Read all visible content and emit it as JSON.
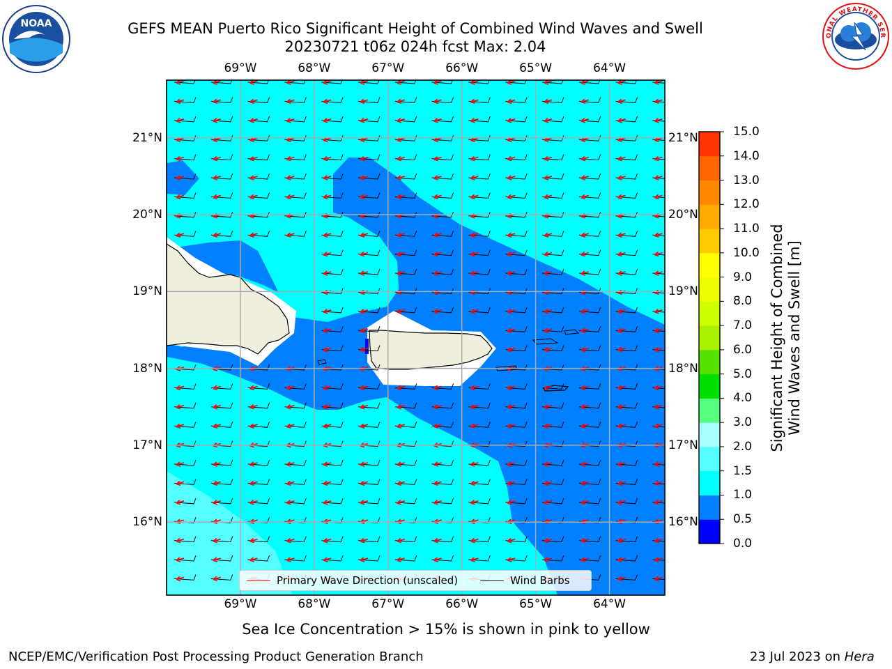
{
  "header": {
    "title_line1": "GEFS MEAN Puerto Rico Significant Height of Combined Wind Waves and Swell",
    "title_line2": "20230721 t06z 024h fcst   Max: 2.04"
  },
  "logos": {
    "left": {
      "name": "noaa-logo",
      "text": "NOAA",
      "ring_text": "NATIONAL OCEANIC AND ATMOSPHERIC ADMINISTRATION · U.S. DEPARTMENT OF COMMERCE"
    },
    "right": {
      "name": "nws-logo",
      "ring_text": "NATIONAL WEATHER SERVICE"
    }
  },
  "map": {
    "lon_range": [
      -70,
      -63.25
    ],
    "lat_range": [
      15.05,
      21.75
    ],
    "lon_ticks": [
      {
        "value": -69,
        "label": "69°W"
      },
      {
        "value": -68,
        "label": "68°W"
      },
      {
        "value": -67,
        "label": "67°W"
      },
      {
        "value": -66,
        "label": "66°W"
      },
      {
        "value": -65,
        "label": "65°W"
      },
      {
        "value": -64,
        "label": "64°W"
      }
    ],
    "lat_ticks": [
      {
        "value": 21,
        "label": "21°N"
      },
      {
        "value": 20,
        "label": "20°N"
      },
      {
        "value": 19,
        "label": "19°N"
      },
      {
        "value": 18,
        "label": "18°N"
      },
      {
        "value": 17,
        "label": "17°N"
      },
      {
        "value": 16,
        "label": "16°N"
      }
    ],
    "gridlines": true,
    "colors": {
      "land": "#f0eedc",
      "band_0_5_1_0": "#0080ff",
      "band_1_0_1_5": "#00ffff",
      "band_1_5_2_0": "#55ffff",
      "wave_arrow": "#ff0000",
      "wind_barb": "#000000"
    },
    "wave_direction": "from east-northeast",
    "wind": "easterly barbs"
  },
  "legend": {
    "items": [
      {
        "name": "primary-wave-direction",
        "label": "Primary Wave Direction (unscaled)",
        "color": "#ff0000"
      },
      {
        "name": "wind-barbs",
        "label": "Wind Barbs",
        "color": "#000000"
      }
    ],
    "position": "bottom-center"
  },
  "colorbar": {
    "title_line1": "Significant Height of Combined",
    "title_line2": "Wind Waves and Swell [m]",
    "levels": [
      "0.0",
      "0.5",
      "1.0",
      "1.5",
      "2.0",
      "3.0",
      "4.0",
      "5.0",
      "6.0",
      "7.0",
      "8.0",
      "9.0",
      "10.0",
      "11.0",
      "12.0",
      "13.0",
      "14.0",
      "15.0"
    ],
    "colors": [
      "#0000ff",
      "#0080ff",
      "#00ffff",
      "#55ffff",
      "#aaffff",
      "#55ff80",
      "#00e000",
      "#55e000",
      "#aaee00",
      "#ccff00",
      "#eeff00",
      "#ffff00",
      "#ffcc00",
      "#ffaa00",
      "#ff8800",
      "#ff6600",
      "#ff3300"
    ]
  },
  "notes": {
    "sea_ice": "Sea Ice Concentration > 15% is shown in pink to yellow"
  },
  "footer": {
    "left": "NCEP/EMC/Verification Post Processing Product Generation Branch",
    "right_prefix": "23 Jul 2023 on ",
    "right_host": "Hera"
  }
}
